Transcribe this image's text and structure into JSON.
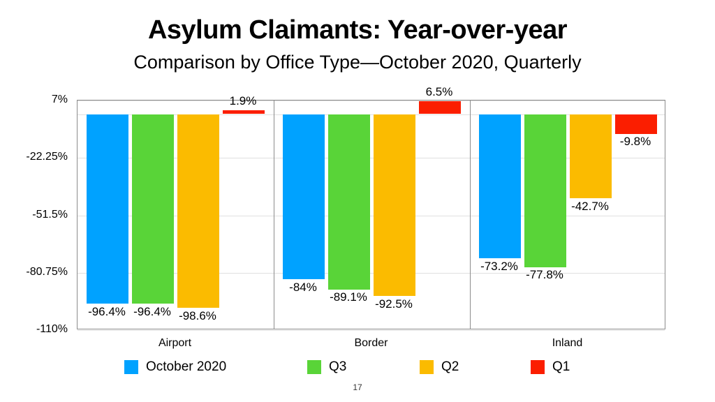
{
  "title": "Asylum Claimants: Year-over-year",
  "subtitle": "Comparison by Office Type—October 2020, Quarterly",
  "page_number": "17",
  "chart_data": {
    "type": "bar",
    "title": "Asylum Claimants: Year-over-year",
    "subtitle": "Comparison by Office Type—October 2020, Quarterly",
    "categories": [
      "Airport",
      "Border",
      "Inland"
    ],
    "series": [
      {
        "name": "October 2020",
        "color": "#00A2FF",
        "values": [
          -96.4,
          -84,
          -73.2
        ],
        "labels": [
          "-96.4%",
          "-84%",
          "-73.2%"
        ]
      },
      {
        "name": "Q3",
        "color": "#59D438",
        "values": [
          -96.4,
          -89.1,
          -77.8
        ],
        "labels": [
          "-96.4%",
          "-89.1%",
          "-77.8%"
        ]
      },
      {
        "name": "Q2",
        "color": "#FBBB00",
        "values": [
          -98.6,
          -92.5,
          -42.7
        ],
        "labels": [
          "-98.6%",
          "-92.5%",
          "-42.7%"
        ]
      },
      {
        "name": "Q1",
        "color": "#FB1E00",
        "values": [
          1.9,
          6.5,
          -9.8
        ],
        "labels": [
          "1.9%",
          "6.5%",
          "-9.8%"
        ]
      }
    ],
    "yticks": [
      {
        "value": 7,
        "label": "7%"
      },
      {
        "value": -22.25,
        "label": "-22.25%"
      },
      {
        "value": -51.5,
        "label": "-51.5%"
      },
      {
        "value": -80.75,
        "label": "-80.75%"
      },
      {
        "value": -110,
        "label": "-110%"
      }
    ],
    "ylim": [
      -110,
      7
    ],
    "grid": true,
    "legend_position": "bottom"
  }
}
